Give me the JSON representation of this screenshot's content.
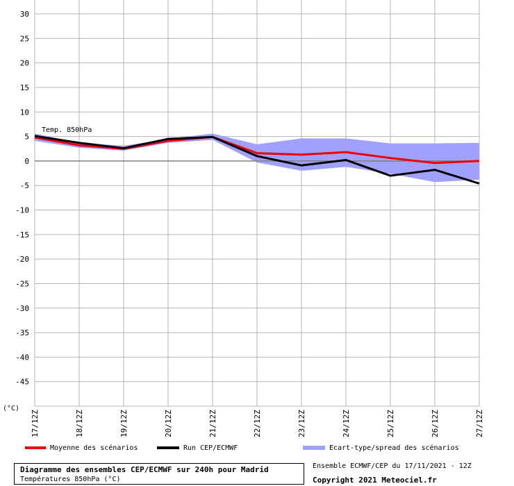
{
  "chart_data": {
    "type": "line",
    "title": "Diagramme des ensembles CEP/ECMWF sur 240h pour Madrid",
    "subtitle": "Températures 850hPa (°C)",
    "ylabel": "(°C)",
    "annotation": "Temp. 850hPa",
    "ylim": [
      -50,
      30
    ],
    "yticks": [
      30,
      25,
      20,
      15,
      10,
      5,
      0,
      -5,
      -10,
      -15,
      -20,
      -25,
      -30,
      -35,
      -40,
      -45
    ],
    "categories": [
      "17/12Z",
      "18/12Z",
      "19/12Z",
      "20/12Z",
      "21/12Z",
      "22/12Z",
      "23/12Z",
      "24/12Z",
      "25/12Z",
      "26/12Z",
      "27/12Z"
    ],
    "grid": true,
    "legend_placement": "bottom",
    "series": [
      {
        "name": "Moyenne des scénarios",
        "color": "#ee0000",
        "values": [
          4.8,
          3.2,
          2.5,
          4.1,
          4.9,
          1.6,
          1.3,
          1.8,
          0.6,
          -0.4,
          0.0
        ]
      },
      {
        "name": "Run CEP/ECMWF",
        "color": "#000000",
        "values": [
          5.1,
          3.7,
          2.6,
          4.5,
          4.9,
          1.0,
          -0.9,
          0.2,
          -3.0,
          -1.8,
          -4.6
        ]
      }
    ],
    "spread": {
      "name": "Ecart-type/spread des scénarios",
      "color": "#a0a0ff",
      "upper": [
        5.6,
        3.7,
        3.1,
        4.5,
        5.6,
        3.4,
        4.6,
        4.6,
        3.6,
        3.6,
        3.7
      ],
      "lower": [
        4.1,
        2.7,
        2.1,
        3.7,
        4.3,
        -0.3,
        -2.0,
        -1.2,
        -2.6,
        -4.3,
        -3.8
      ]
    }
  },
  "info": {
    "ensemble": "Ensemble ECMWF/CEP du 17/11/2021 - 12Z",
    "copyright": "Copyright 2021 Meteociel.fr"
  }
}
